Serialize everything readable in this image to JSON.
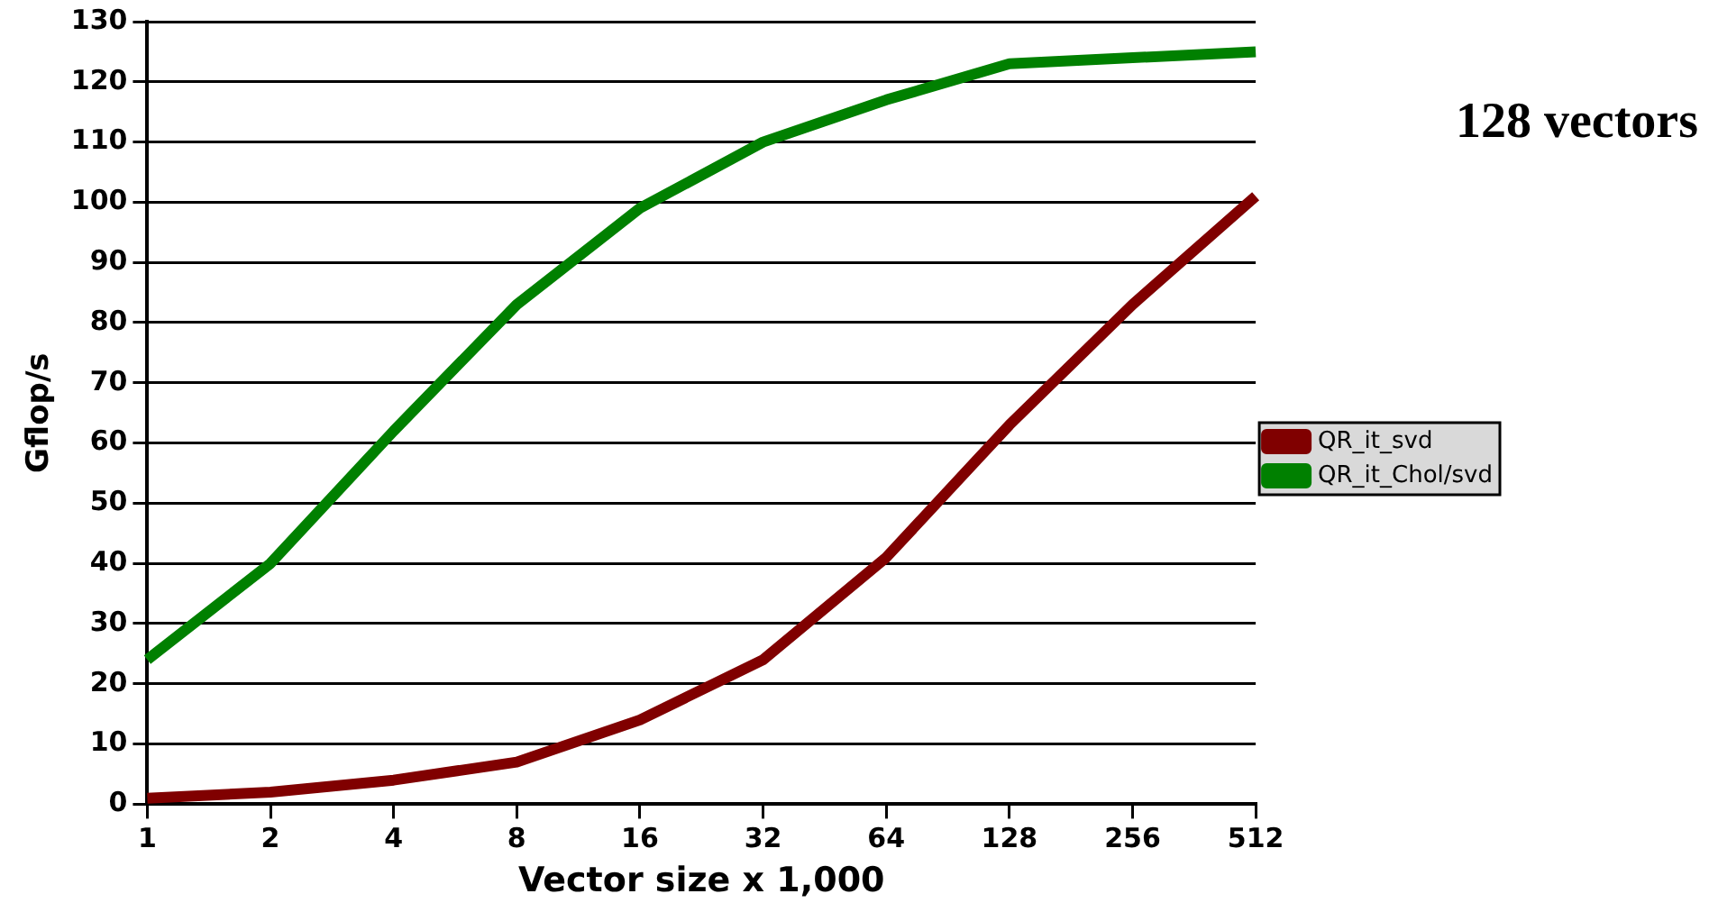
{
  "chart_data": {
    "type": "line",
    "annotations": [
      "128 vectors"
    ],
    "xlabel": "Vector size x 1,000",
    "ylabel": "Gflop/s",
    "categories": [
      "1",
      "2",
      "4",
      "8",
      "16",
      "32",
      "64",
      "128",
      "256",
      "512"
    ],
    "series": [
      {
        "name": "QR_it_svd",
        "color": "#800000",
        "values": [
          1,
          2,
          4,
          7,
          14,
          24,
          41,
          63,
          83,
          101
        ]
      },
      {
        "name": "QR_it_Chol/svd",
        "color": "#008000",
        "values": [
          24,
          40,
          62,
          83,
          99,
          110,
          117,
          123,
          124,
          125
        ]
      }
    ],
    "ylim": [
      0,
      130
    ],
    "yticks": [
      0,
      10,
      20,
      30,
      40,
      50,
      60,
      70,
      80,
      90,
      100,
      110,
      120,
      130
    ],
    "grid": "y",
    "legend": "right",
    "marker": "none",
    "line_style": "solid"
  }
}
